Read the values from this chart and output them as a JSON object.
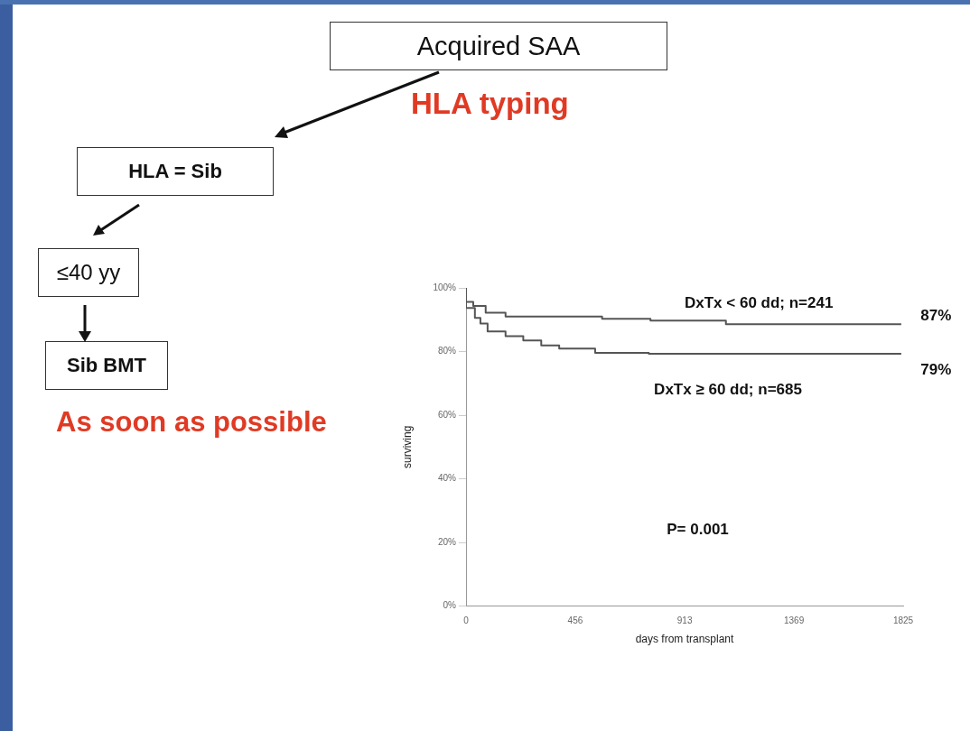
{
  "chart_data": {
    "type": "step",
    "xlabel": "days from transplant",
    "ylabel": "surviving",
    "series": [
      {
        "name": "DxTx < 60 dd; n=241",
        "color": "#555555",
        "x": [
          0,
          30,
          82,
          165,
          568,
          770,
          1085,
          1593,
          1817
        ],
        "values": [
          100,
          95.6,
          94.3,
          92.2,
          91.0,
          90.3,
          89.7,
          88.6,
          88.6
        ]
      },
      {
        "name": "DxTx ≥ 60 dd; n=685",
        "color": "#555555",
        "x": [
          0,
          37,
          60,
          90,
          165,
          239,
          314,
          389,
          539,
          763,
          1817
        ],
        "values": [
          100,
          93.7,
          90.6,
          88.8,
          86.3,
          84.8,
          83.5,
          81.9,
          80.9,
          79.6,
          79.3
        ]
      }
    ],
    "xlim": [
      0,
      1825
    ],
    "xticks": [
      0,
      456,
      913,
      1369,
      1825
    ],
    "ylim": [
      0,
      100
    ],
    "yticks": [
      {
        "value": 0,
        "label": "0%"
      },
      {
        "value": 20,
        "label": "20%"
      },
      {
        "value": 40,
        "label": "40%"
      },
      {
        "value": 60,
        "label": "60%"
      },
      {
        "value": 80,
        "label": "80%"
      },
      {
        "value": 100,
        "label": "100%"
      }
    ],
    "grid": false,
    "legend": false,
    "marker": "none",
    "line_style": "solid",
    "annotations": [
      "Acquired SAA",
      "HLA typing",
      "HLA = Sib",
      "≤40 yy",
      "Sib BMT",
      "As soon as possible",
      "P= 0.001",
      "87%",
      "79%"
    ]
  }
}
